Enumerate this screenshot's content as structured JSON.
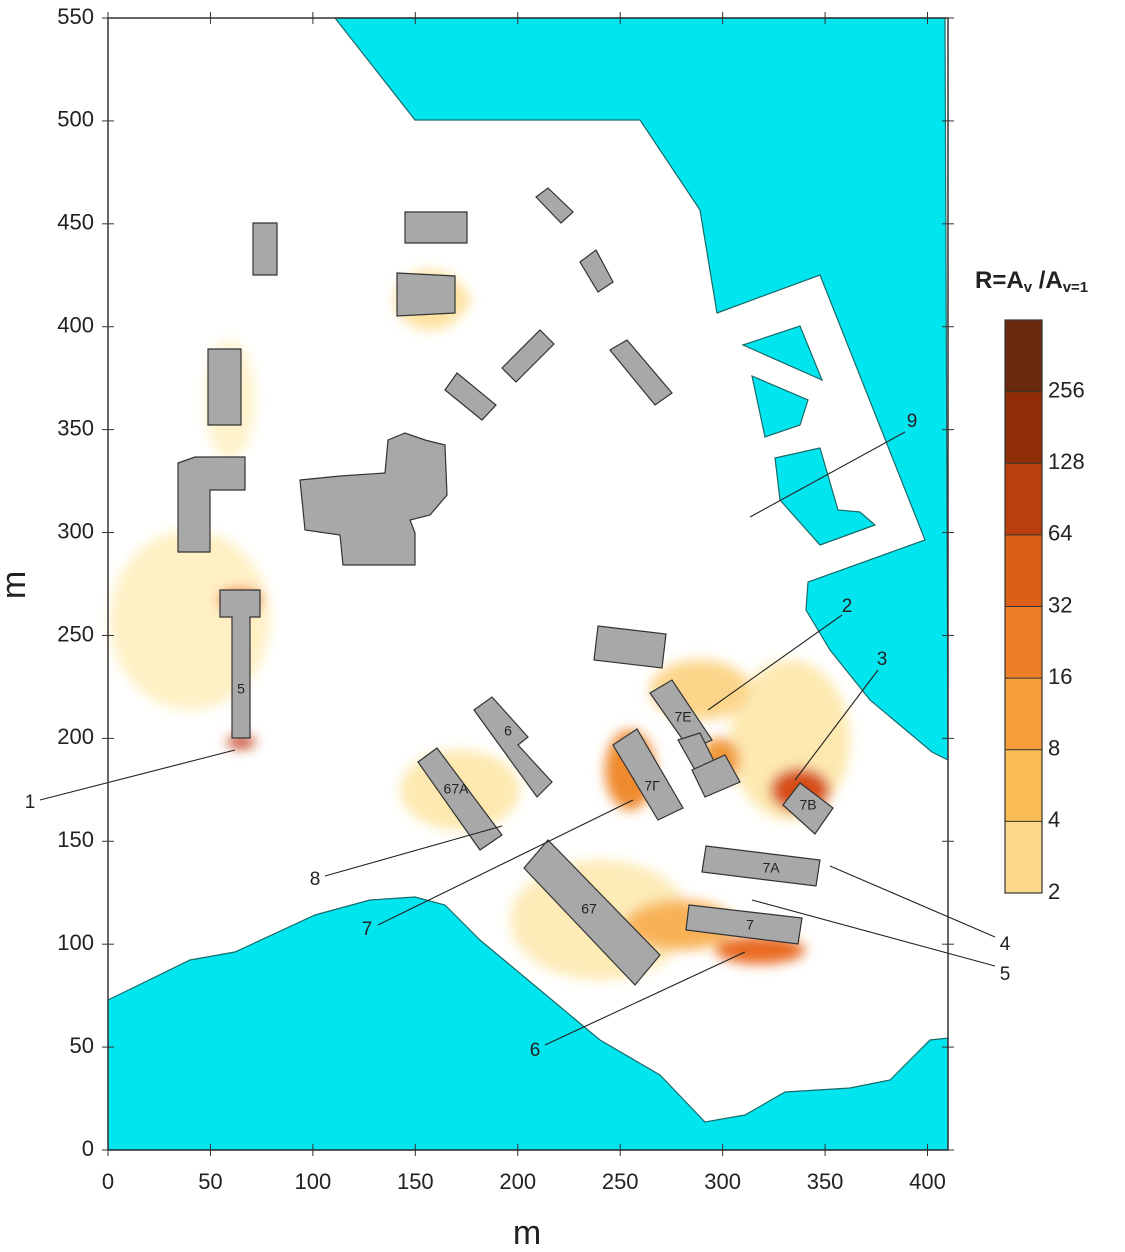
{
  "chart_data": {
    "type": "map",
    "x_label": "m",
    "y_label": "m",
    "xlim": [
      0,
      410
    ],
    "xticks": [
      0,
      50,
      100,
      150,
      200,
      250,
      300,
      350,
      400
    ],
    "ylim": [
      0,
      550
    ],
    "yticks": [
      0,
      50,
      100,
      150,
      200,
      250,
      300,
      350,
      400,
      450,
      500,
      550
    ],
    "colorbar": {
      "title_parts": [
        {
          "text": "R=A"
        },
        {
          "text": "v",
          "sub": true
        },
        {
          "text": " /A"
        },
        {
          "text": "v=1",
          "sub": true
        }
      ],
      "clim": [
        2,
        512
      ],
      "log": true,
      "ticks": [
        2,
        4,
        8,
        16,
        32,
        64,
        128,
        256
      ],
      "colors": [
        "#fdd88a",
        "#fbbc55",
        "#f69d3b",
        "#ee7f28",
        "#dc5f16",
        "#b8400c",
        "#8e2d06",
        "#6a2a10"
      ]
    },
    "buildings": [
      "5",
      "6",
      "67A",
      "7Г",
      "7E",
      "7B",
      "7A",
      "7",
      "67"
    ],
    "callouts": [
      "1",
      "2",
      "3",
      "4",
      "5",
      "6",
      "7",
      "8",
      "9"
    ]
  }
}
